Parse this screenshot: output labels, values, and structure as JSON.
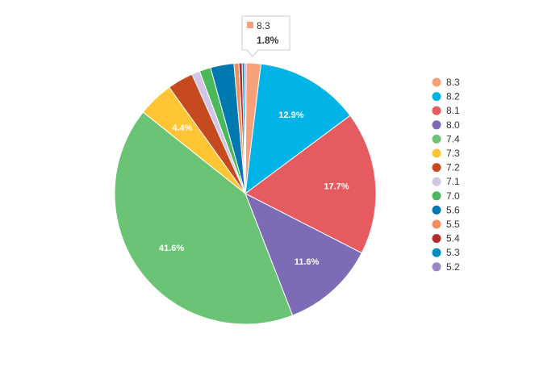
{
  "chart_data": {
    "type": "pie",
    "categories": [
      "8.3",
      "8.2",
      "8.1",
      "8.0",
      "7.4",
      "7.3",
      "7.2",
      "7.1",
      "7.0",
      "5.6",
      "5.5",
      "5.4",
      "5.3",
      "5.2"
    ],
    "values": [
      1.8,
      12.9,
      17.7,
      11.6,
      41.6,
      4.4,
      3.2,
      1.0,
      1.4,
      2.9,
      0.6,
      0.4,
      0.3,
      0.2
    ],
    "unit": "%",
    "colors": [
      "#f7a07a",
      "#00b3e6",
      "#e55b5f",
      "#7e6bb5",
      "#6bc375",
      "#ffc534",
      "#c54b1f",
      "#d2c5e5",
      "#4cb85c",
      "#0078b0",
      "#f58c59",
      "#b22b2f",
      "#008cc2",
      "#9b88c4"
    ],
    "data_labels": {
      "1": "12.9%",
      "2": "17.7%",
      "3": "11.6%",
      "4": "41.6%",
      "5": "4.4%"
    },
    "legend_position": "right",
    "tooltip": {
      "category": "8.3",
      "value": "1.8%",
      "color": "#f7a07a"
    }
  }
}
